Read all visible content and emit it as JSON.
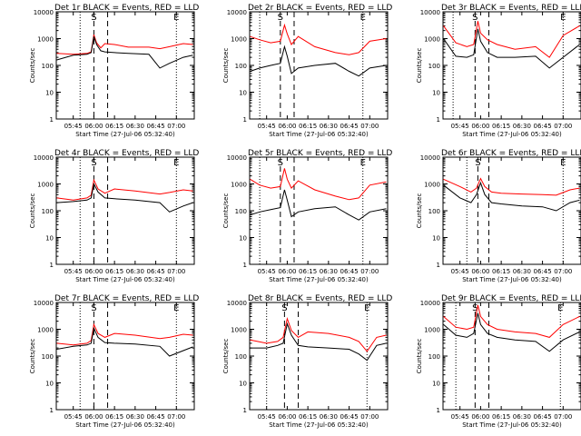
{
  "colors": {
    "events": "#000000",
    "lld": "#ff0000",
    "axes": "#000000",
    "background": "#ffffff"
  },
  "shared": {
    "xlabel": "Start Time (27-Jul-06 05:32:40)",
    "ylabel": "Counts/sec",
    "x_ticks": [
      "05:45",
      "06:00",
      "06:15",
      "06:30",
      "06:45",
      "07:00"
    ],
    "y_ticks": [
      "1",
      "10",
      "100",
      "1000",
      "10000"
    ],
    "ylim": [
      1,
      10000
    ],
    "y_scale": "log",
    "xlim": [
      "05:32:40",
      "07:13:00"
    ]
  },
  "chart_data": [
    {
      "type": "line",
      "title": "Det 1r BLACK = Events, RED = LLD",
      "markers": [
        {
          "time": "05:50",
          "label": "",
          "style": "dotted"
        },
        {
          "time": "06:00",
          "label": "S",
          "style": "dashed"
        },
        {
          "time": "06:10",
          "label": "",
          "style": "dashed"
        },
        {
          "time": "07:00",
          "label": "E",
          "style": "dotted"
        }
      ],
      "x": [
        "05:33",
        "05:45",
        "05:55",
        "05:58",
        "06:00",
        "06:02",
        "06:05",
        "06:08",
        "06:15",
        "06:25",
        "06:40",
        "06:48",
        "06:55",
        "07:05",
        "07:12"
      ],
      "series": [
        {
          "name": "LLD",
          "values": [
            280,
            260,
            280,
            320,
            1400,
            700,
            450,
            650,
            600,
            480,
            480,
            420,
            500,
            650,
            600
          ]
        },
        {
          "name": "Events",
          "values": [
            160,
            240,
            260,
            300,
            1200,
            600,
            350,
            320,
            300,
            280,
            260,
            80,
            120,
            200,
            240
          ]
        }
      ]
    },
    {
      "type": "line",
      "title": "Det 2r BLACK = Events, RED = LLD",
      "markers": [
        {
          "time": "05:40",
          "label": "",
          "style": "dotted"
        },
        {
          "time": "05:55",
          "label": "S",
          "style": "dashed"
        },
        {
          "time": "06:05",
          "label": "",
          "style": "dashed"
        },
        {
          "time": "06:55",
          "label": "E",
          "style": "dotted"
        }
      ],
      "x": [
        "05:33",
        "05:40",
        "05:48",
        "05:55",
        "05:58",
        "06:00",
        "06:03",
        "06:08",
        "06:20",
        "06:35",
        "06:45",
        "06:52",
        "07:00",
        "07:12"
      ],
      "series": [
        {
          "name": "LLD",
          "values": [
            1200,
            900,
            700,
            800,
            3200,
            1500,
            600,
            1200,
            500,
            300,
            250,
            300,
            800,
            1000
          ]
        },
        {
          "name": "Events",
          "values": [
            60,
            80,
            100,
            120,
            500,
            220,
            50,
            80,
            100,
            120,
            60,
            40,
            80,
            100
          ]
        }
      ]
    },
    {
      "type": "line",
      "title": "Det 3r BLACK = Events, RED = LLD",
      "markers": [
        {
          "time": "05:40",
          "label": "",
          "style": "dotted"
        },
        {
          "time": "05:56",
          "label": "S",
          "style": "dashed"
        },
        {
          "time": "06:06",
          "label": "",
          "style": "dashed"
        },
        {
          "time": "07:00",
          "label": "E",
          "style": "dotted"
        }
      ],
      "x": [
        "05:33",
        "05:42",
        "05:50",
        "05:55",
        "05:58",
        "06:00",
        "06:05",
        "06:12",
        "06:25",
        "06:40",
        "06:50",
        "07:00",
        "07:12"
      ],
      "series": [
        {
          "name": "LLD",
          "values": [
            3000,
            700,
            500,
            600,
            4500,
            1600,
            900,
            600,
            400,
            500,
            200,
            1300,
            3000
          ]
        },
        {
          "name": "Events",
          "values": [
            1000,
            220,
            200,
            250,
            2300,
            800,
            300,
            200,
            200,
            220,
            80,
            200,
            600
          ]
        }
      ]
    },
    {
      "type": "line",
      "title": "Det 4r BLACK = Events, RED = LLD",
      "markers": [
        {
          "time": "05:50",
          "label": "",
          "style": "dotted"
        },
        {
          "time": "06:00",
          "label": "S",
          "style": "dashed"
        },
        {
          "time": "06:10",
          "label": "",
          "style": "dashed"
        },
        {
          "time": "07:00",
          "label": "E",
          "style": "dotted"
        }
      ],
      "x": [
        "05:33",
        "05:45",
        "05:55",
        "05:58",
        "06:00",
        "06:03",
        "06:08",
        "06:15",
        "06:30",
        "06:48",
        "06:55",
        "07:05",
        "07:12"
      ],
      "series": [
        {
          "name": "LLD",
          "values": [
            300,
            250,
            300,
            380,
            1400,
            650,
            450,
            650,
            550,
            420,
            480,
            600,
            550
          ]
        },
        {
          "name": "Events",
          "values": [
            200,
            220,
            250,
            300,
            1000,
            500,
            300,
            280,
            250,
            200,
            90,
            150,
            200
          ]
        }
      ]
    },
    {
      "type": "line",
      "title": "Det 5r BLACK = Events, RED = LLD",
      "markers": [
        {
          "time": "05:40",
          "label": "",
          "style": "dotted"
        },
        {
          "time": "05:55",
          "label": "S",
          "style": "dashed"
        },
        {
          "time": "06:05",
          "label": "",
          "style": "dashed"
        },
        {
          "time": "06:55",
          "label": "E",
          "style": "dotted"
        }
      ],
      "x": [
        "05:33",
        "05:40",
        "05:48",
        "05:55",
        "05:58",
        "06:00",
        "06:03",
        "06:08",
        "06:20",
        "06:35",
        "06:45",
        "06:52",
        "07:00",
        "07:12"
      ],
      "series": [
        {
          "name": "LLD",
          "values": [
            1500,
            900,
            700,
            800,
            3800,
            1500,
            700,
            1300,
            600,
            350,
            260,
            300,
            900,
            1200
          ]
        },
        {
          "name": "Events",
          "values": [
            70,
            90,
            110,
            130,
            600,
            250,
            60,
            90,
            120,
            140,
            70,
            45,
            90,
            120
          ]
        }
      ]
    },
    {
      "type": "line",
      "title": "Det 6r BLACK = Events, RED = LLD",
      "markers": [
        {
          "time": "05:50",
          "label": "",
          "style": "dotted"
        },
        {
          "time": "05:58",
          "label": "S",
          "style": "dashed"
        },
        {
          "time": "06:06",
          "label": "",
          "style": "dashed"
        },
        {
          "time": "07:00",
          "label": "E",
          "style": "dotted"
        }
      ],
      "x": [
        "05:33",
        "05:45",
        "05:53",
        "05:57",
        "06:00",
        "06:03",
        "06:08",
        "06:15",
        "06:30",
        "06:45",
        "06:55",
        "07:05",
        "07:12"
      ],
      "series": [
        {
          "name": "LLD",
          "values": [
            1500,
            800,
            500,
            700,
            1600,
            800,
            500,
            450,
            420,
            400,
            380,
            600,
            700
          ]
        },
        {
          "name": "Events",
          "values": [
            900,
            300,
            200,
            400,
            1100,
            400,
            200,
            180,
            150,
            140,
            100,
            200,
            250
          ]
        }
      ]
    },
    {
      "type": "line",
      "title": "Det 7r BLACK = Events, RED = LLD",
      "markers": [
        {
          "time": "05:50",
          "label": "",
          "style": "dotted"
        },
        {
          "time": "06:00",
          "label": "S",
          "style": "dashed"
        },
        {
          "time": "06:10",
          "label": "",
          "style": "dashed"
        },
        {
          "time": "07:00",
          "label": "E",
          "style": "dotted"
        }
      ],
      "x": [
        "05:33",
        "05:45",
        "05:55",
        "05:58",
        "06:00",
        "06:03",
        "06:08",
        "06:15",
        "06:30",
        "06:48",
        "06:55",
        "07:05",
        "07:12"
      ],
      "series": [
        {
          "name": "LLD",
          "values": [
            300,
            260,
            300,
            380,
            1500,
            700,
            500,
            700,
            600,
            450,
            500,
            650,
            600
          ]
        },
        {
          "name": "Events",
          "values": [
            180,
            230,
            260,
            300,
            1100,
            500,
            320,
            300,
            280,
            230,
            100,
            160,
            220
          ]
        }
      ]
    },
    {
      "type": "line",
      "title": "Det 8r BLACK = Events, RED = LLD",
      "markers": [
        {
          "time": "05:45",
          "label": "",
          "style": "dotted"
        },
        {
          "time": "05:58",
          "label": "S",
          "style": "dashed"
        },
        {
          "time": "06:08",
          "label": "",
          "style": "dashed"
        },
        {
          "time": "06:58",
          "label": "E",
          "style": "dotted"
        }
      ],
      "x": [
        "05:33",
        "05:45",
        "05:53",
        "05:57",
        "06:00",
        "06:03",
        "06:08",
        "06:15",
        "06:30",
        "06:45",
        "06:52",
        "06:58",
        "07:05",
        "07:12"
      ],
      "series": [
        {
          "name": "LLD",
          "values": [
            400,
            300,
            350,
            500,
            2500,
            900,
            500,
            800,
            700,
            500,
            350,
            150,
            500,
            600
          ]
        },
        {
          "name": "Events",
          "values": [
            200,
            200,
            250,
            300,
            1600,
            600,
            250,
            220,
            200,
            180,
            120,
            70,
            250,
            300
          ]
        }
      ]
    },
    {
      "type": "line",
      "title": "Det 9r BLACK = Events, RED = LLD",
      "markers": [
        {
          "time": "05:42",
          "label": "",
          "style": "dotted"
        },
        {
          "time": "05:56",
          "label": "S",
          "style": "dashed"
        },
        {
          "time": "06:06",
          "label": "",
          "style": "dashed"
        },
        {
          "time": "06:58",
          "label": "E",
          "style": "dotted"
        }
      ],
      "x": [
        "05:33",
        "05:42",
        "05:50",
        "05:55",
        "05:58",
        "06:00",
        "06:05",
        "06:12",
        "06:25",
        "06:40",
        "06:50",
        "07:00",
        "07:12"
      ],
      "series": [
        {
          "name": "LLD",
          "values": [
            3000,
            1200,
            1000,
            1200,
            8000,
            3000,
            1500,
            1000,
            800,
            700,
            500,
            1500,
            3000
          ]
        },
        {
          "name": "Events",
          "values": [
            1500,
            600,
            500,
            700,
            4000,
            1500,
            700,
            500,
            400,
            350,
            150,
            400,
            800
          ]
        }
      ]
    }
  ]
}
